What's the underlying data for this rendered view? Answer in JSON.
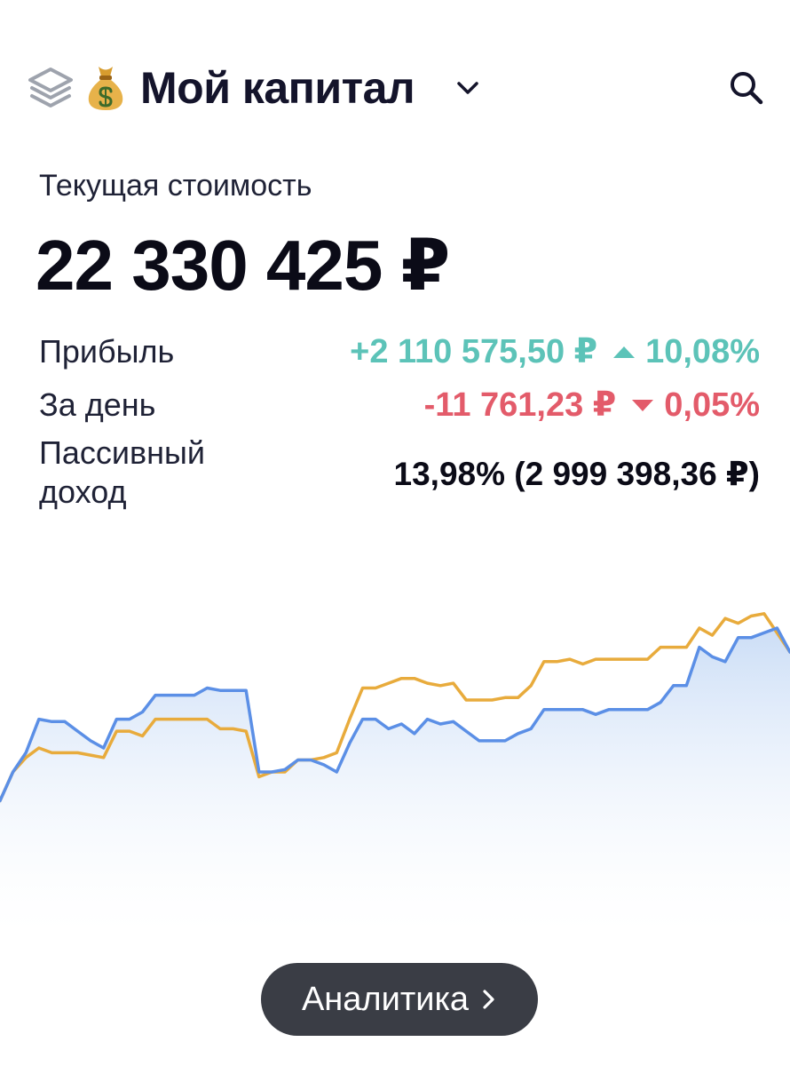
{
  "header": {
    "title": "Мой капитал",
    "layers_icon": "layers-icon",
    "title_icon": "money-bag-icon",
    "dropdown_icon": "chevron-down-icon",
    "search_icon": "search-icon"
  },
  "summary": {
    "current_value_label": "Текущая стоимость",
    "current_value": "22 330 425 ₽"
  },
  "metrics": {
    "profit": {
      "label": "Прибыль",
      "amount": "+2 110 575,50 ₽",
      "percent": "10,08%",
      "direction": "up"
    },
    "day": {
      "label": "За день",
      "amount": "-11 761,23 ₽",
      "percent": "0,05%",
      "direction": "down"
    },
    "passive": {
      "label_line1": "Пассивный",
      "label_line2": "доход",
      "value": "13,98% (2 999 398,36 ₽)"
    }
  },
  "colors": {
    "positive": "#5cc3b8",
    "negative": "#e35b6a",
    "series_blue": "#5b8fe6",
    "series_orange": "#e8ab3c",
    "button_bg": "#3a3d45"
  },
  "chart_data": {
    "type": "line",
    "title": "",
    "xlabel": "",
    "ylabel": "",
    "grid": false,
    "legend": "none",
    "ylim": [
      0,
      100
    ],
    "series": [
      {
        "color": "#5b8fe6",
        "area_fill": true,
        "values": [
          18,
          30,
          38,
          52,
          51,
          51,
          47,
          43,
          40,
          52,
          52,
          55,
          62,
          62,
          62,
          62,
          65,
          64,
          64,
          64,
          30,
          30,
          31,
          35,
          35,
          33,
          30,
          42,
          52,
          52,
          48,
          50,
          46,
          52,
          50,
          51,
          47,
          43,
          43,
          43,
          46,
          48,
          56,
          56,
          56,
          56,
          54,
          56,
          56,
          56,
          56,
          59,
          66,
          66,
          82,
          78,
          76,
          86,
          86,
          88,
          90,
          80
        ]
      },
      {
        "color": "#e8ab3c",
        "area_fill": false,
        "values": [
          18,
          30,
          36,
          40,
          38,
          38,
          38,
          37,
          36,
          47,
          47,
          45,
          52,
          52,
          52,
          52,
          52,
          48,
          48,
          47,
          28,
          30,
          30,
          35,
          35,
          36,
          38,
          52,
          65,
          65,
          67,
          69,
          69,
          67,
          66,
          67,
          60,
          60,
          60,
          61,
          61,
          66,
          76,
          76,
          77,
          75,
          77,
          77,
          77,
          77,
          77,
          82,
          82,
          82,
          90,
          87,
          94,
          92,
          95,
          96,
          88,
          80
        ]
      }
    ]
  },
  "footer": {
    "analytics_label": "Аналитика",
    "analytics_icon": "chevron-right-icon"
  }
}
